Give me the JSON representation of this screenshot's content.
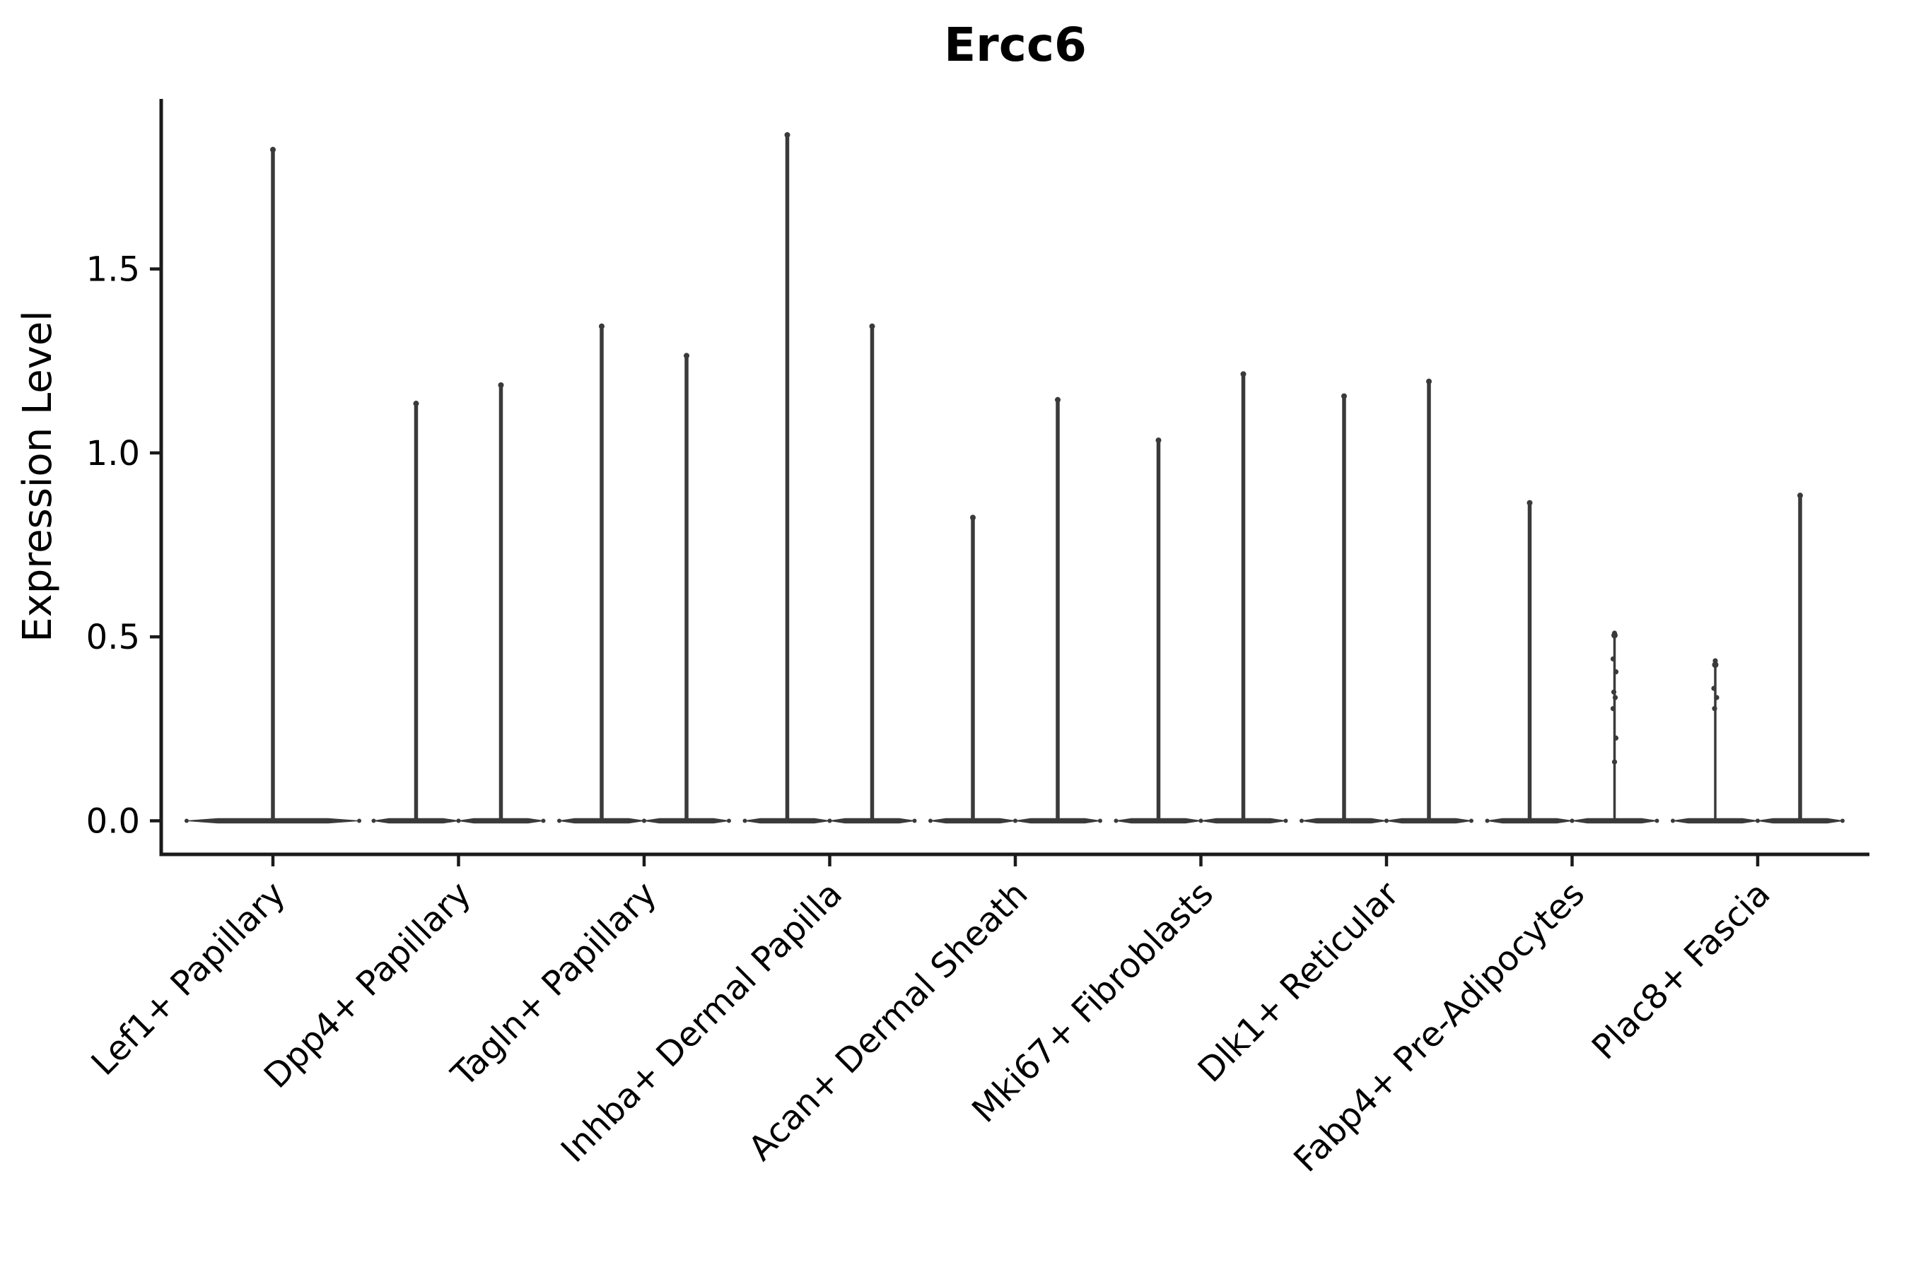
{
  "title": "Ercc6",
  "y_axis": {
    "label": "Expression Level",
    "tick_labels": [
      "0.0",
      "0.5",
      "1.0",
      "1.5"
    ]
  },
  "x_axis": {
    "categories": [
      "Lef1+ Papillary",
      "Dpp4+ Papillary",
      "Tagln+ Papillary",
      "Inhba+ Dermal Papilla",
      "Acan+ Dermal Sheath",
      "Mki67+ Fibroblasts",
      "Dlk1+ Reticular",
      "Fabp4+ Pre-Adipocytes",
      "Plac8+ Fascia"
    ]
  },
  "colors": {
    "violin": "#3a3a3a",
    "spine": "#1a1a1a",
    "text": "#000000",
    "background": "#ffffff"
  },
  "chart_data": {
    "type": "violin",
    "title": "Ercc6",
    "xlabel": "",
    "ylabel": "Expression Level",
    "ylim": [
      -0.09,
      1.96
    ],
    "yticks": [
      0.0,
      0.5,
      1.0,
      1.5
    ],
    "ytick_labels": [
      "0.0",
      "0.5",
      "1.0",
      "1.5"
    ],
    "grid": false,
    "legend": "none",
    "style": "collapsed violins: wide flat base at expression 0 with a thin vertical spike up to the maximum value; jitter points visible on the two shortest spikes",
    "categories": [
      "Lef1+ Papillary",
      "Dpp4+ Papillary",
      "Tagln+ Papillary",
      "Inhba+ Dermal Papilla",
      "Acan+ Dermal Sheath",
      "Mki67+ Fibroblasts",
      "Dlk1+ Reticular",
      "Fabp4+ Pre-Adipocytes",
      "Plac8+ Fascia"
    ],
    "violins": [
      {
        "category_index": 0,
        "category": "Lef1+ Papillary",
        "position": "center",
        "offset_frac": 0,
        "width_frac": 0.93,
        "peak": 1.83,
        "points": []
      },
      {
        "category_index": 1,
        "category": "Dpp4+ Papillary",
        "position": "left",
        "offset_frac": -0.2286,
        "width_frac": 0.457,
        "peak": 1.14,
        "points": []
      },
      {
        "category_index": 1,
        "category": "Dpp4+ Papillary",
        "position": "right",
        "offset_frac": 0.2286,
        "width_frac": 0.457,
        "peak": 1.19,
        "points": []
      },
      {
        "category_index": 2,
        "category": "Tagln+ Papillary",
        "position": "left",
        "offset_frac": -0.2286,
        "width_frac": 0.457,
        "peak": 1.35,
        "points": []
      },
      {
        "category_index": 2,
        "category": "Tagln+ Papillary",
        "position": "right",
        "offset_frac": 0.2286,
        "width_frac": 0.457,
        "peak": 1.27,
        "points": []
      },
      {
        "category_index": 3,
        "category": "Inhba+ Dermal Papilla",
        "position": "left",
        "offset_frac": -0.2286,
        "width_frac": 0.457,
        "peak": 1.87,
        "points": []
      },
      {
        "category_index": 3,
        "category": "Inhba+ Dermal Papilla",
        "position": "right",
        "offset_frac": 0.2286,
        "width_frac": 0.457,
        "peak": 1.35,
        "points": []
      },
      {
        "category_index": 4,
        "category": "Acan+ Dermal Sheath",
        "position": "left",
        "offset_frac": -0.2286,
        "width_frac": 0.457,
        "peak": 0.83,
        "points": []
      },
      {
        "category_index": 4,
        "category": "Acan+ Dermal Sheath",
        "position": "right",
        "offset_frac": 0.2286,
        "width_frac": 0.457,
        "peak": 1.15,
        "points": []
      },
      {
        "category_index": 5,
        "category": "Mki67+ Fibroblasts",
        "position": "left",
        "offset_frac": -0.2286,
        "width_frac": 0.457,
        "peak": 1.04,
        "points": []
      },
      {
        "category_index": 5,
        "category": "Mki67+ Fibroblasts",
        "position": "right",
        "offset_frac": 0.2286,
        "width_frac": 0.457,
        "peak": 1.22,
        "points": []
      },
      {
        "category_index": 6,
        "category": "Dlk1+ Reticular",
        "position": "left",
        "offset_frac": -0.2286,
        "width_frac": 0.457,
        "peak": 1.16,
        "points": []
      },
      {
        "category_index": 6,
        "category": "Dlk1+ Reticular",
        "position": "right",
        "offset_frac": 0.2286,
        "width_frac": 0.457,
        "peak": 1.2,
        "points": []
      },
      {
        "category_index": 7,
        "category": "Fabp4+ Pre-Adipocytes",
        "position": "left",
        "offset_frac": -0.2286,
        "width_frac": 0.457,
        "peak": 0.87,
        "points": []
      },
      {
        "category_index": 7,
        "category": "Fabp4+ Pre-Adipocytes",
        "position": "right",
        "offset_frac": 0.2286,
        "width_frac": 0.457,
        "peak": 0.51,
        "points": [
          0.51,
          0.44,
          0.405,
          0.35,
          0.335,
          0.305,
          0.225,
          0.16
        ]
      },
      {
        "category_index": 8,
        "category": "Plac8+ Fascia",
        "position": "left",
        "offset_frac": -0.2286,
        "width_frac": 0.457,
        "peak": 0.43,
        "points": [
          0.435,
          0.36,
          0.335,
          0.305
        ]
      },
      {
        "category_index": 8,
        "category": "Plac8+ Fascia",
        "position": "right",
        "offset_frac": 0.2286,
        "width_frac": 0.457,
        "peak": 0.89,
        "points": []
      }
    ]
  }
}
